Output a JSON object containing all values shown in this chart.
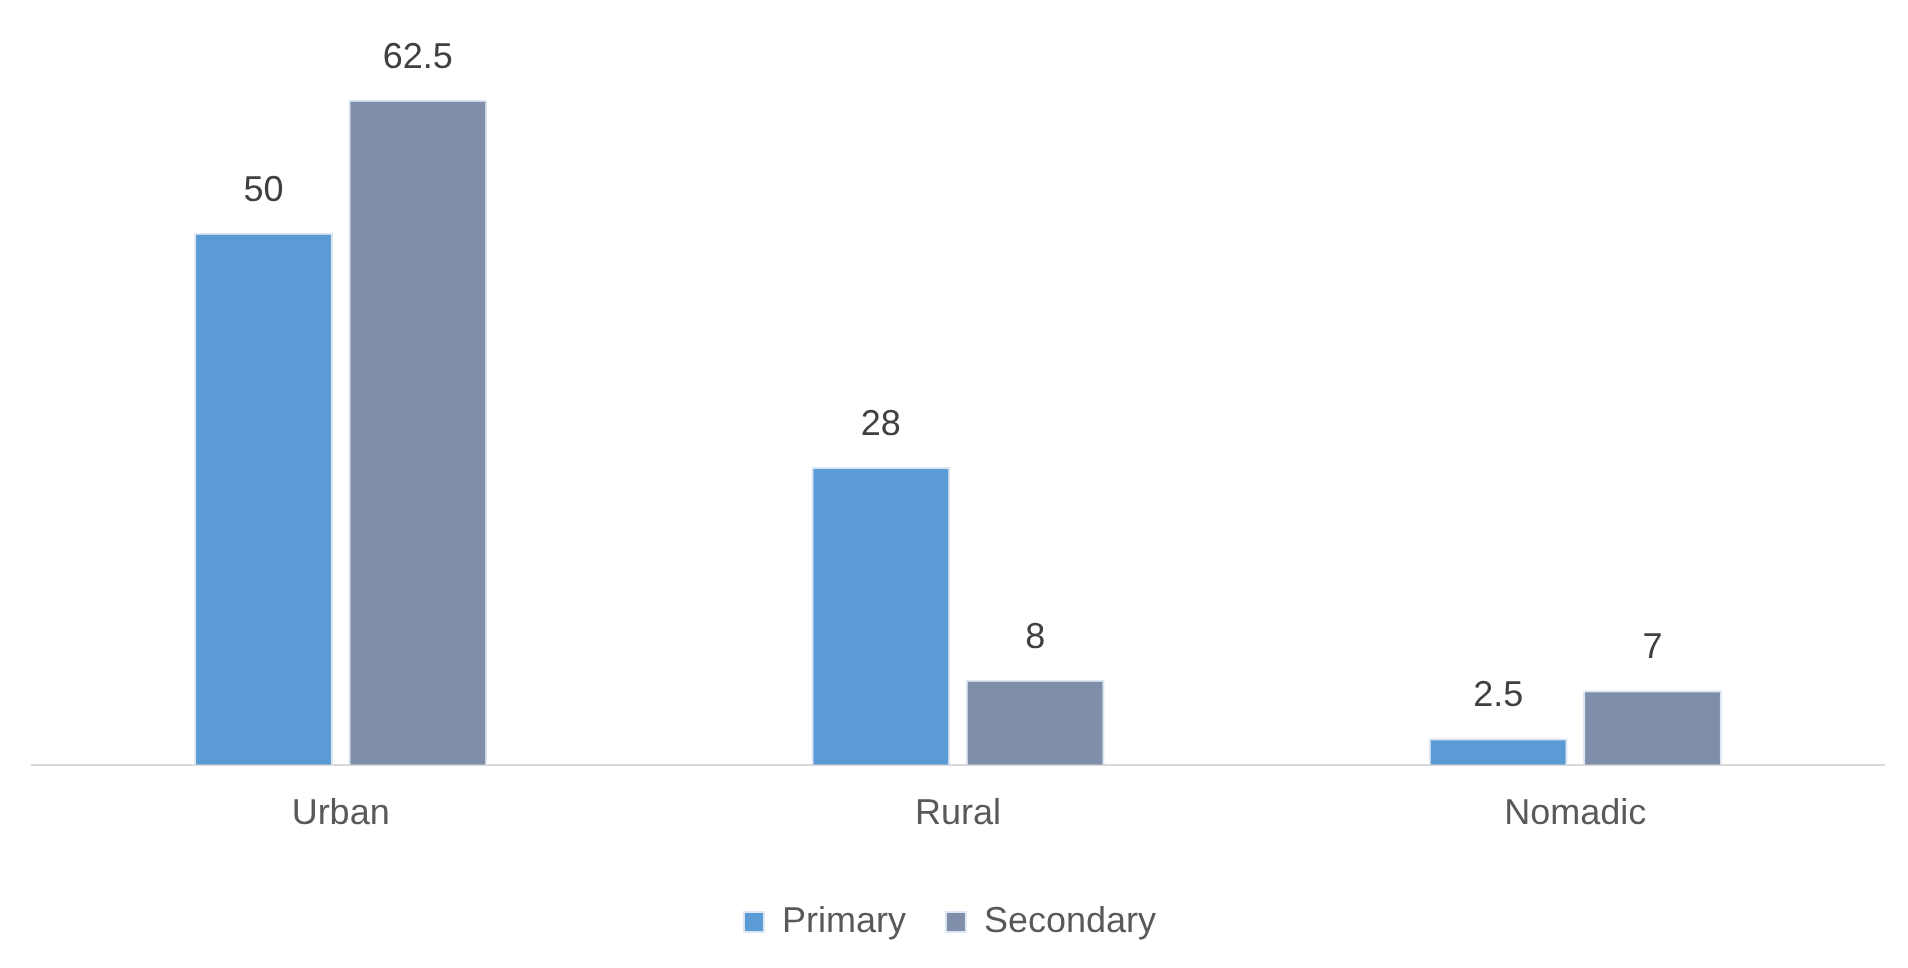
{
  "chart_data": {
    "type": "bar",
    "categories": [
      "Urban",
      "Rural",
      "Nomadic"
    ],
    "series": [
      {
        "name": "Primary",
        "color": "#5b9bd5",
        "values": [
          50,
          28,
          2.5
        ]
      },
      {
        "name": "Secondary",
        "color": "#7f8fa9",
        "values": [
          62.5,
          8,
          7
        ]
      }
    ],
    "tick_labels": "x",
    "grid": false,
    "legend": "bottom",
    "data_labels": true
  }
}
